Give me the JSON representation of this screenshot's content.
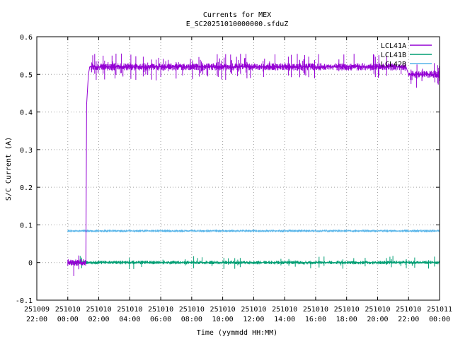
{
  "chart_data": {
    "type": "line",
    "title": "Currents for MEX",
    "subtitle": "E_SC20251010000000.sfduZ",
    "xlabel": "Time (yymmdd HH:MM)",
    "ylabel": "S/C Current (A)",
    "xlim": [
      "251009 22:00",
      "251011 00:00"
    ],
    "ylim": [
      -0.1,
      0.6
    ],
    "grid": true,
    "legend_position": "top-right",
    "x_ticks": [
      {
        "date": "251009",
        "time": "22:00"
      },
      {
        "date": "251010",
        "time": "00:00"
      },
      {
        "date": "251010",
        "time": "02:00"
      },
      {
        "date": "251010",
        "time": "04:00"
      },
      {
        "date": "251010",
        "time": "06:00"
      },
      {
        "date": "251010",
        "time": "08:00"
      },
      {
        "date": "251010",
        "time": "10:00"
      },
      {
        "date": "251010",
        "time": "12:00"
      },
      {
        "date": "251010",
        "time": "14:00"
      },
      {
        "date": "251010",
        "time": "16:00"
      },
      {
        "date": "251010",
        "time": "18:00"
      },
      {
        "date": "251010",
        "time": "20:00"
      },
      {
        "date": "251010",
        "time": "22:00"
      },
      {
        "date": "251011",
        "time": "00:00"
      }
    ],
    "y_ticks": [
      "-0.1",
      "0",
      "0.1",
      "0.2",
      "0.3",
      "0.4",
      "0.5",
      "0.6"
    ],
    "series": [
      {
        "name": "LCL41A",
        "color": "#9400d3",
        "points": [
          {
            "x": "251010 00:00",
            "y": 0.0
          },
          {
            "x": "251010 01:10",
            "y": 0.0
          },
          {
            "x": "251010 01:13",
            "y": 0.42
          },
          {
            "x": "251010 01:20",
            "y": 0.5
          },
          {
            "x": "251010 01:25",
            "y": 0.52
          },
          {
            "x": "251010 06:00",
            "y": 0.52
          },
          {
            "x": "251010 12:00",
            "y": 0.52
          },
          {
            "x": "251010 18:00",
            "y": 0.52
          },
          {
            "x": "251010 21:50",
            "y": 0.52
          },
          {
            "x": "251010 22:00",
            "y": 0.5
          },
          {
            "x": "251011 00:00",
            "y": 0.5
          }
        ]
      },
      {
        "name": "LCL41B",
        "color": "#009e73",
        "points": [
          {
            "x": "251010 00:00",
            "y": 0.0
          },
          {
            "x": "251010 12:00",
            "y": 0.0
          },
          {
            "x": "251011 00:00",
            "y": 0.0
          }
        ]
      },
      {
        "name": "LCL42B",
        "color": "#56b4e9",
        "points": [
          {
            "x": "251010 00:00",
            "y": 0.084
          },
          {
            "x": "251010 12:00",
            "y": 0.084
          },
          {
            "x": "251011 00:00",
            "y": 0.084
          }
        ]
      }
    ]
  }
}
